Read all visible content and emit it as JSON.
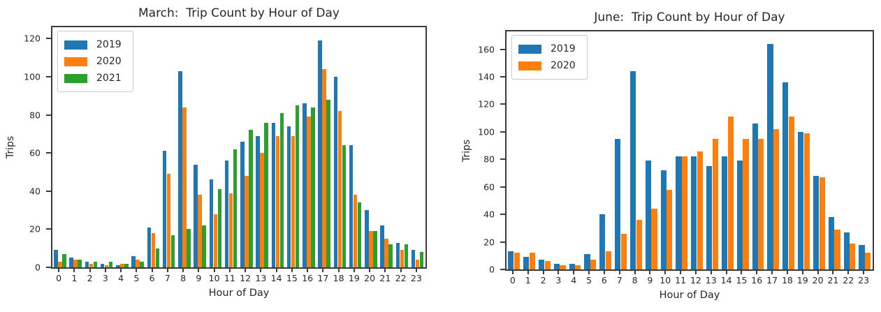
{
  "figure": {
    "background": "#ffffff",
    "text_color": "#262626",
    "spine_color": "#3b3b3b"
  },
  "chart_data": [
    {
      "type": "bar",
      "title": "March:  Trip Count by Hour of Day",
      "xlabel": "Hour of Day",
      "ylabel": "Trips",
      "categories": [
        "0",
        "1",
        "2",
        "3",
        "4",
        "5",
        "6",
        "7",
        "8",
        "9",
        "10",
        "11",
        "12",
        "13",
        "14",
        "15",
        "16",
        "17",
        "18",
        "19",
        "20",
        "21",
        "22",
        "23"
      ],
      "series": [
        {
          "name": "2019",
          "color": "#1f77b4",
          "values": [
            9,
            5,
            3,
            2,
            1,
            6,
            21,
            61,
            103,
            54,
            46,
            56,
            66,
            69,
            76,
            74,
            86,
            119,
            100,
            64,
            30,
            22,
            13,
            9
          ]
        },
        {
          "name": "2020",
          "color": "#ff7f0e",
          "values": [
            3,
            4,
            2,
            1,
            2,
            4,
            18,
            49,
            84,
            38,
            28,
            39,
            48,
            60,
            69,
            69,
            79,
            104,
            82,
            38,
            19,
            15,
            9,
            4
          ]
        },
        {
          "name": "2021",
          "color": "#2ca02c",
          "values": [
            7,
            4,
            3,
            3,
            2,
            3,
            10,
            17,
            20,
            22,
            41,
            62,
            72,
            76,
            81,
            85,
            84,
            88,
            64,
            34,
            19,
            12,
            12,
            8
          ]
        }
      ],
      "ylim": [
        0,
        126
      ],
      "yticks": [
        0,
        20,
        40,
        60,
        80,
        100,
        120
      ],
      "legend_position": "upper left",
      "grid": false
    },
    {
      "type": "bar",
      "title": "June:  Trip Count by Hour of Day",
      "xlabel": "Hour of Day",
      "ylabel": "Trips",
      "categories": [
        "0",
        "1",
        "2",
        "3",
        "4",
        "5",
        "6",
        "7",
        "8",
        "9",
        "10",
        "11",
        "12",
        "13",
        "14",
        "15",
        "16",
        "17",
        "18",
        "19",
        "20",
        "21",
        "22",
        "23"
      ],
      "series": [
        {
          "name": "2019",
          "color": "#1f77b4",
          "values": [
            13,
            9,
            7,
            4,
            4,
            11,
            40,
            95,
            144,
            79,
            72,
            82,
            82,
            75,
            82,
            79,
            106,
            164,
            136,
            100,
            68,
            38,
            27,
            18
          ]
        },
        {
          "name": "2020",
          "color": "#ff7f0e",
          "values": [
            12,
            12,
            6,
            3,
            3,
            7,
            13,
            26,
            36,
            44,
            58,
            82,
            86,
            95,
            111,
            95,
            95,
            102,
            111,
            99,
            67,
            29,
            19,
            12
          ]
        }
      ],
      "ylim": [
        0,
        173
      ],
      "yticks": [
        0,
        20,
        40,
        60,
        80,
        100,
        120,
        140,
        160
      ],
      "legend_position": "upper left",
      "grid": false
    }
  ]
}
